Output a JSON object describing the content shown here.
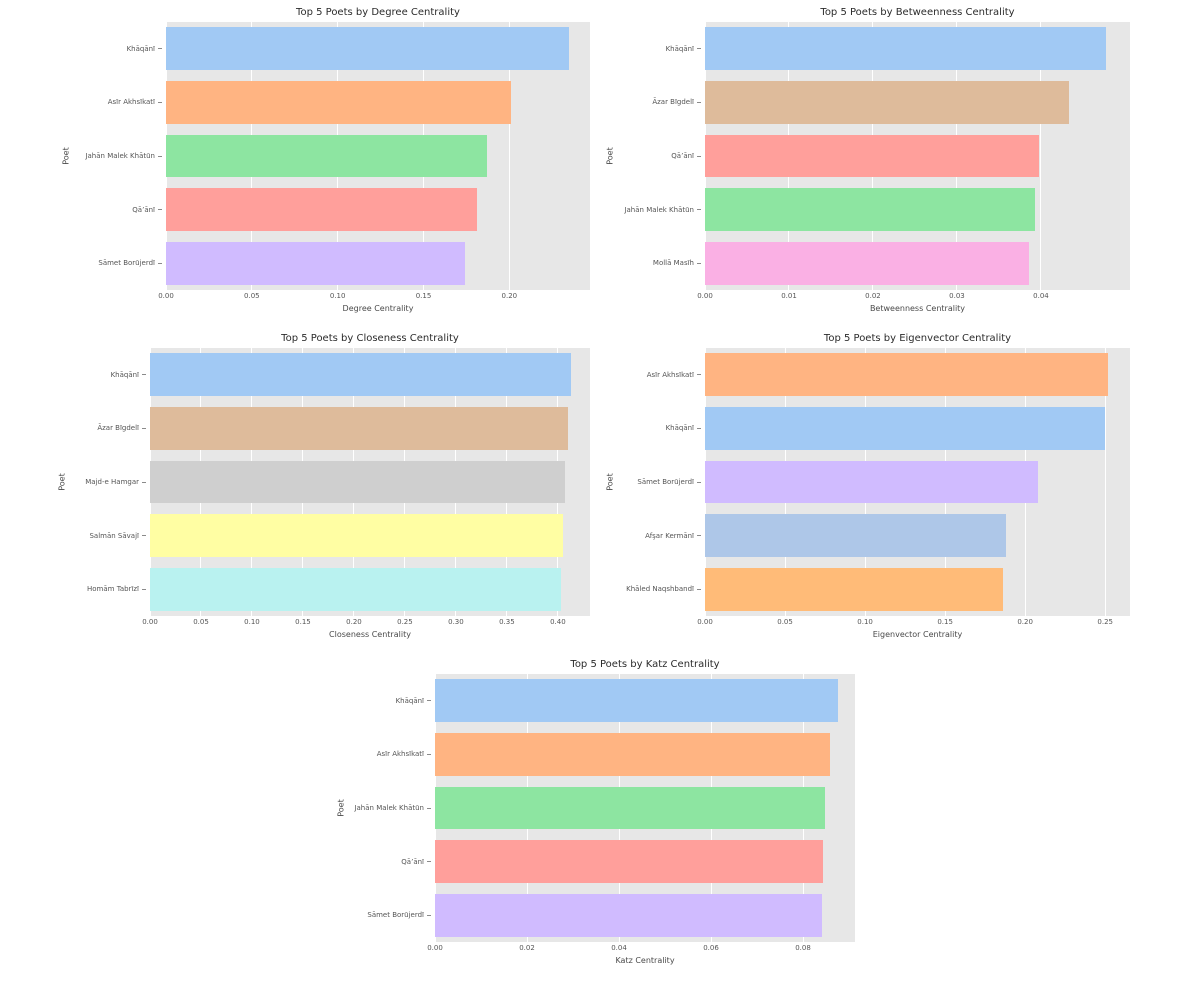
{
  "figure": {
    "background": "#ffffff",
    "axes_background": "#e7e7e7",
    "grid_color": "#ffffff",
    "title_color": "#2b2b2b",
    "tick_color": "#555555"
  },
  "chart_data": [
    {
      "type": "bar",
      "orientation": "horizontal",
      "title": "Top 5 Poets by Degree Centrality",
      "xlabel": "Degree Centrality",
      "ylabel": "Poet",
      "categories": [
        "Khāqānī",
        "Asīr Akhsīkatī",
        "Jahān Malek Khātūn",
        "Qā’ānī",
        "Sāmet Borūjerdī"
      ],
      "values": [
        0.235,
        0.201,
        0.187,
        0.181,
        0.174
      ],
      "colors": [
        "#a1c9f4",
        "#ffb482",
        "#8de5a1",
        "#ff9f9b",
        "#d0bbff"
      ],
      "xlim": [
        0,
        0.247
      ],
      "xticks": [
        0,
        0.05,
        0.1,
        0.15,
        0.2
      ],
      "tick_decimals": 2,
      "grid": true,
      "legend": "none"
    },
    {
      "type": "bar",
      "orientation": "horizontal",
      "title": "Top 5 Poets by Betweenness Centrality",
      "xlabel": "Betweenness Centrality",
      "ylabel": "Poet",
      "categories": [
        "Khāqānī",
        "Āzar Bīgdelī",
        "Qā’ānī",
        "Jahān Malek Khātūn",
        "Mollā Masīh"
      ],
      "values": [
        0.0478,
        0.0433,
        0.0398,
        0.0393,
        0.0386
      ],
      "colors": [
        "#a1c9f4",
        "#debb9b",
        "#ff9f9b",
        "#8de5a1",
        "#fab0e4"
      ],
      "xlim": [
        0,
        0.0506
      ],
      "xticks": [
        0,
        0.01,
        0.02,
        0.03,
        0.04
      ],
      "tick_decimals": 2,
      "grid": true,
      "legend": "none"
    },
    {
      "type": "bar",
      "orientation": "horizontal",
      "title": "Top 5 Poets by Closeness Centrality",
      "xlabel": "Closeness Centrality",
      "ylabel": "Poet",
      "categories": [
        "Khāqānī",
        "Āzar Bīgdelī",
        "Majd-e Hamgar",
        "Salmān Sāvajī",
        "Homām Tabrīzī"
      ],
      "values": [
        0.413,
        0.41,
        0.407,
        0.405,
        0.403
      ],
      "colors": [
        "#a1c9f4",
        "#debb9b",
        "#cfcfcf",
        "#fffea3",
        "#b9f2f0"
      ],
      "xlim": [
        0,
        0.4315
      ],
      "xticks": [
        0,
        0.05,
        0.1,
        0.15,
        0.2,
        0.25,
        0.3,
        0.35,
        0.4
      ],
      "tick_decimals": 2,
      "grid": true,
      "legend": "none"
    },
    {
      "type": "bar",
      "orientation": "horizontal",
      "title": "Top 5 Poets by Eigenvector Centrality",
      "xlabel": "Eigenvector Centrality",
      "ylabel": "Poet",
      "categories": [
        "Asīr Akhsīkatī",
        "Khāqānī",
        "Sāmet Borūjerdī",
        "Afşar Kermānī",
        "Khāled Naqshbandī"
      ],
      "values": [
        0.252,
        0.25,
        0.208,
        0.188,
        0.186
      ],
      "colors": [
        "#ffb482",
        "#a1c9f4",
        "#d0bbff",
        "#aec7e8",
        "#ffbb78"
      ],
      "xlim": [
        0,
        0.2655
      ],
      "xticks": [
        0,
        0.05,
        0.1,
        0.15,
        0.2,
        0.25
      ],
      "tick_decimals": 2,
      "grid": true,
      "legend": "none"
    },
    {
      "type": "bar",
      "orientation": "horizontal",
      "title": "Top 5 Poets by Katz Centrality",
      "xlabel": "Katz Centrality",
      "ylabel": "Poet",
      "categories": [
        "Khāqānī",
        "Asīr Akhsīkatī",
        "Jahān Malek Khātūn",
        "Qā’ānī",
        "Sāmet Borūjerdī"
      ],
      "values": [
        0.0876,
        0.0858,
        0.0848,
        0.0844,
        0.0841
      ],
      "colors": [
        "#a1c9f4",
        "#ffb482",
        "#8de5a1",
        "#ff9f9b",
        "#d0bbff"
      ],
      "xlim": [
        0,
        0.0913
      ],
      "xticks": [
        0,
        0.02,
        0.04,
        0.06,
        0.08
      ],
      "tick_decimals": 2,
      "grid": true,
      "legend": "none"
    }
  ]
}
